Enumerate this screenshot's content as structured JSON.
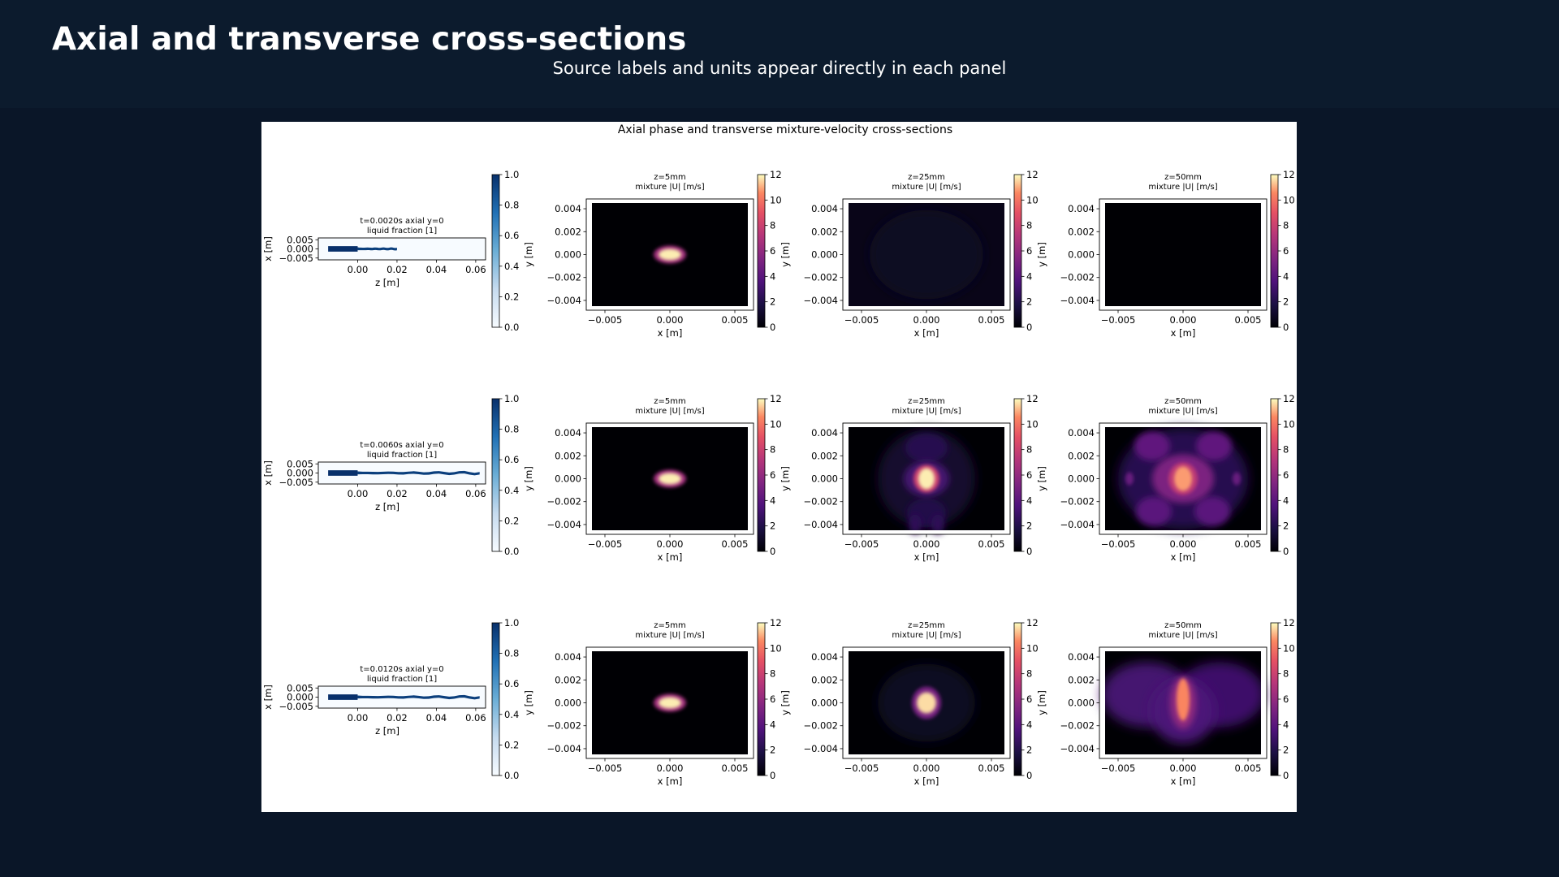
{
  "header": {
    "title": "Axial and transverse cross-sections",
    "subtitle": "Source labels and units appear directly in each panel"
  },
  "chart_data": {
    "type": "heatmap",
    "title": "Axial phase and transverse mixture-velocity cross-sections",
    "grid": false,
    "rows": [
      {
        "axial": {
          "title_line1": "t=0.0020s axial y=0",
          "title_line2": "liquid fraction [1]",
          "xlabel": "z [m]",
          "ylabel": "x [m]",
          "xticks": [
            "0.00",
            "0.02",
            "0.04",
            "0.06"
          ],
          "yticks": [
            "0.005",
            "0.000",
            "−0.005"
          ],
          "xlim": [
            -0.02,
            0.065
          ],
          "ylim": [
            -0.006,
            0.006
          ],
          "liquid_extent_z": [
            -0.015,
            0.02
          ],
          "colorbar": {
            "min": 0.0,
            "max": 1.0,
            "ticks": [
              "0.0",
              "0.2",
              "0.4",
              "0.6",
              "0.8",
              "1.0"
            ],
            "colormap": "Blues"
          }
        },
        "sections": [
          {
            "title_line1": "z=5mm",
            "title_line2": "mixture |U| [m/s]",
            "xlabel": "x [m]",
            "ylabel": "y [m]",
            "max_velocity": 12,
            "feature": "core jet"
          },
          {
            "title_line1": "z=25mm",
            "title_line2": "mixture |U| [m/s]",
            "xlabel": "x [m]",
            "ylabel": "y [m]",
            "max_velocity": 0.5,
            "feature": "faint background"
          },
          {
            "title_line1": "z=50mm",
            "title_line2": "mixture |U| [m/s]",
            "xlabel": "x [m]",
            "ylabel": "y [m]",
            "max_velocity": 0,
            "feature": "empty"
          }
        ]
      },
      {
        "axial": {
          "title_line1": "t=0.0060s axial y=0",
          "title_line2": "liquid fraction [1]",
          "xlabel": "z [m]",
          "ylabel": "x [m]",
          "xticks": [
            "0.00",
            "0.02",
            "0.04",
            "0.06"
          ],
          "yticks": [
            "0.005",
            "0.000",
            "−0.005"
          ],
          "xlim": [
            -0.02,
            0.065
          ],
          "ylim": [
            -0.006,
            0.006
          ],
          "liquid_extent_z": [
            -0.015,
            0.062
          ],
          "colorbar": {
            "min": 0.0,
            "max": 1.0,
            "ticks": [
              "0.0",
              "0.2",
              "0.4",
              "0.6",
              "0.8",
              "1.0"
            ],
            "colormap": "Blues"
          }
        },
        "sections": [
          {
            "title_line1": "z=5mm",
            "title_line2": "mixture |U| [m/s]",
            "xlabel": "x [m]",
            "ylabel": "y [m]",
            "max_velocity": 12,
            "feature": "core jet"
          },
          {
            "title_line1": "z=25mm",
            "title_line2": "mixture |U| [m/s]",
            "xlabel": "x [m]",
            "ylabel": "y [m]",
            "max_velocity": 12,
            "feature": "core with spreading plume"
          },
          {
            "title_line1": "z=50mm",
            "title_line2": "mixture |U| [m/s]",
            "xlabel": "x [m]",
            "ylabel": "y [m]",
            "max_velocity": 11,
            "feature": "core with wide turbulent plume"
          }
        ]
      },
      {
        "axial": {
          "title_line1": "t=0.0120s axial y=0",
          "title_line2": "liquid fraction [1]",
          "xlabel": "z [m]",
          "ylabel": "x [m]",
          "xticks": [
            "0.00",
            "0.02",
            "0.04",
            "0.06"
          ],
          "yticks": [
            "0.005",
            "0.000",
            "−0.005"
          ],
          "xlim": [
            -0.02,
            0.065
          ],
          "ylim": [
            -0.006,
            0.006
          ],
          "liquid_extent_z": [
            -0.015,
            0.062
          ],
          "colorbar": {
            "min": 0.0,
            "max": 1.0,
            "ticks": [
              "0.0",
              "0.2",
              "0.4",
              "0.6",
              "0.8",
              "1.0"
            ],
            "colormap": "Blues"
          }
        },
        "sections": [
          {
            "title_line1": "z=5mm",
            "title_line2": "mixture |U| [m/s]",
            "xlabel": "x [m]",
            "ylabel": "y [m]",
            "max_velocity": 12,
            "feature": "core jet"
          },
          {
            "title_line1": "z=25mm",
            "title_line2": "mixture |U| [m/s]",
            "xlabel": "x [m]",
            "ylabel": "y [m]",
            "max_velocity": 12,
            "feature": "core with faint halo"
          },
          {
            "title_line1": "z=50mm",
            "title_line2": "mixture |U| [m/s]",
            "xlabel": "x [m]",
            "ylabel": "y [m]",
            "max_velocity": 11,
            "feature": "elongated core with diffuse wings"
          }
        ]
      }
    ],
    "section_axes": {
      "xticks": [
        "−0.005",
        "0.000",
        "0.005"
      ],
      "yticks": [
        "0.004",
        "0.002",
        "0.000",
        "−0.002",
        "−0.004"
      ],
      "xlim": [
        -0.006,
        0.006
      ],
      "ylim": [
        -0.0045,
        0.0045
      ]
    },
    "velocity_colorbar": {
      "min": 0,
      "max": 12,
      "ticks": [
        "0",
        "2",
        "4",
        "6",
        "8",
        "10",
        "12"
      ],
      "colormap": "magma"
    }
  }
}
